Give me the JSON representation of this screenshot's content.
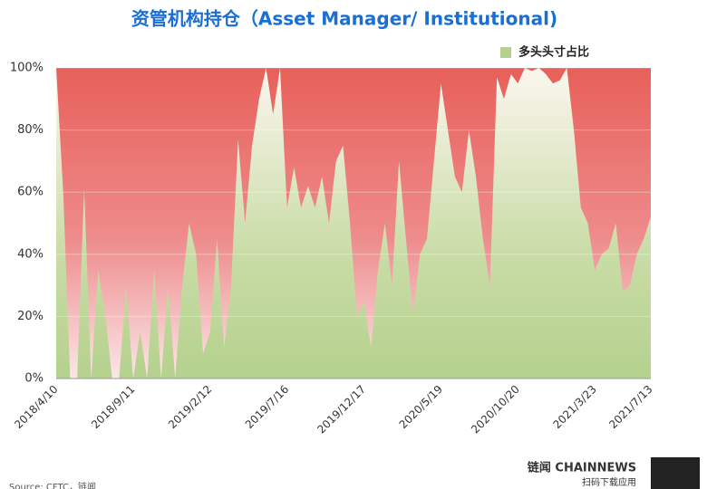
{
  "chart_data": {
    "type": "area",
    "title": "资管机构持仓（Asset Manager/ Institutional)",
    "categories": [
      "2018/4/10",
      null,
      null,
      null,
      null,
      null,
      null,
      null,
      null,
      null,
      null,
      "2018/9/11",
      null,
      null,
      null,
      null,
      null,
      null,
      null,
      null,
      null,
      null,
      "2019/2/12",
      null,
      null,
      null,
      null,
      null,
      null,
      null,
      null,
      null,
      null,
      "2019/7/16",
      null,
      null,
      null,
      null,
      null,
      null,
      null,
      null,
      null,
      null,
      "2019/12/17",
      null,
      null,
      null,
      null,
      null,
      null,
      null,
      null,
      null,
      null,
      "2020/5/19",
      null,
      null,
      null,
      null,
      null,
      null,
      null,
      null,
      null,
      null,
      "2020/10/20",
      null,
      null,
      null,
      null,
      null,
      null,
      null,
      null,
      null,
      null,
      "2021/3/23",
      null,
      null,
      null,
      null,
      null,
      null,
      null,
      "2021/7/13"
    ],
    "series": [
      {
        "name": "多头头寸占比",
        "color": "#b5d18e",
        "values": [
          100,
          60,
          0,
          0,
          61,
          0,
          35,
          21,
          0,
          0,
          30,
          0,
          15,
          0,
          35,
          0,
          30,
          0,
          30,
          50,
          40,
          8,
          15,
          45,
          10,
          30,
          77,
          50,
          75,
          90,
          100,
          85,
          100,
          55,
          68,
          55,
          62,
          55,
          65,
          50,
          70,
          75,
          50,
          20,
          25,
          10,
          35,
          50,
          30,
          70,
          45,
          20,
          40,
          45,
          70,
          95,
          80,
          65,
          60,
          80,
          65,
          45,
          30,
          97,
          90,
          98,
          95,
          100,
          99,
          100,
          98,
          95,
          96,
          100,
          80,
          55,
          50,
          35,
          40,
          42,
          50,
          28,
          30,
          40,
          45,
          52
        ]
      }
    ],
    "background_color": "#e8605a",
    "ylim": [
      0,
      100
    ],
    "yticks": [
      {
        "value": 0,
        "label": "0%"
      },
      {
        "value": 20,
        "label": "20%"
      },
      {
        "value": 40,
        "label": "40%"
      },
      {
        "value": 60,
        "label": "60%"
      },
      {
        "value": 80,
        "label": "80%"
      },
      {
        "value": 100,
        "label": "100%"
      }
    ],
    "grid": true,
    "legend": "top-right",
    "source": "Source: CFTC，链闻",
    "logo": "链闻 CHAINNEWS",
    "logo_caption": "扫码下载应用"
  }
}
